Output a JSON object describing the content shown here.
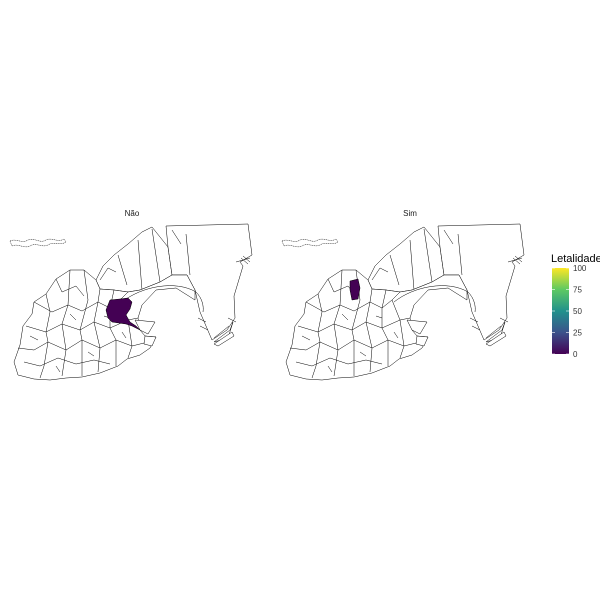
{
  "facets": [
    {
      "label": "Não",
      "highlighted_region": "central-east district",
      "letalidade": 0,
      "highlight_color": "#440154"
    },
    {
      "label": "Sim",
      "highlighted_region": "central-north district",
      "letalidade": 0,
      "highlight_color": "#440154"
    }
  ],
  "legend": {
    "title": "Letalidade",
    "ticks": [
      "100",
      "75",
      "50",
      "25",
      "0"
    ],
    "tick_values": [
      100,
      75,
      50,
      25,
      0
    ],
    "range": [
      0,
      100
    ],
    "palette": "viridis",
    "colors": [
      "#440154",
      "#3b528b",
      "#21918c",
      "#5ec962",
      "#fde725"
    ]
  }
}
